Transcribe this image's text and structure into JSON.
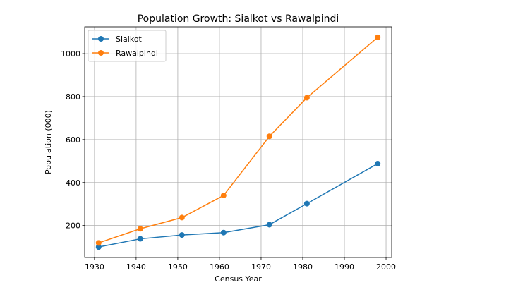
{
  "chart_data": {
    "type": "line",
    "title": "Population Growth: Sialkot vs Rawalpindi",
    "xlabel": "Census Year",
    "ylabel": "Population (000)",
    "x": [
      1931,
      1941,
      1951,
      1961,
      1972,
      1981,
      1998
    ],
    "series": [
      {
        "name": "Sialkot",
        "color": "#1f77b4",
        "values": [
          100,
          138,
          156,
          167,
          204,
          302,
          488
        ]
      },
      {
        "name": "Rawalpindi",
        "color": "#ff7f0e",
        "values": [
          119,
          185,
          237,
          340,
          615,
          795,
          1076
        ]
      }
    ],
    "xlim": [
      1927.65,
      2001.35
    ],
    "ylim": [
      51.2,
      1124.8
    ],
    "xticks": [
      1930,
      1940,
      1950,
      1960,
      1970,
      1980,
      1990,
      2000
    ],
    "yticks": [
      200,
      400,
      600,
      800,
      1000
    ],
    "grid": true,
    "legend_position": "top-left"
  }
}
